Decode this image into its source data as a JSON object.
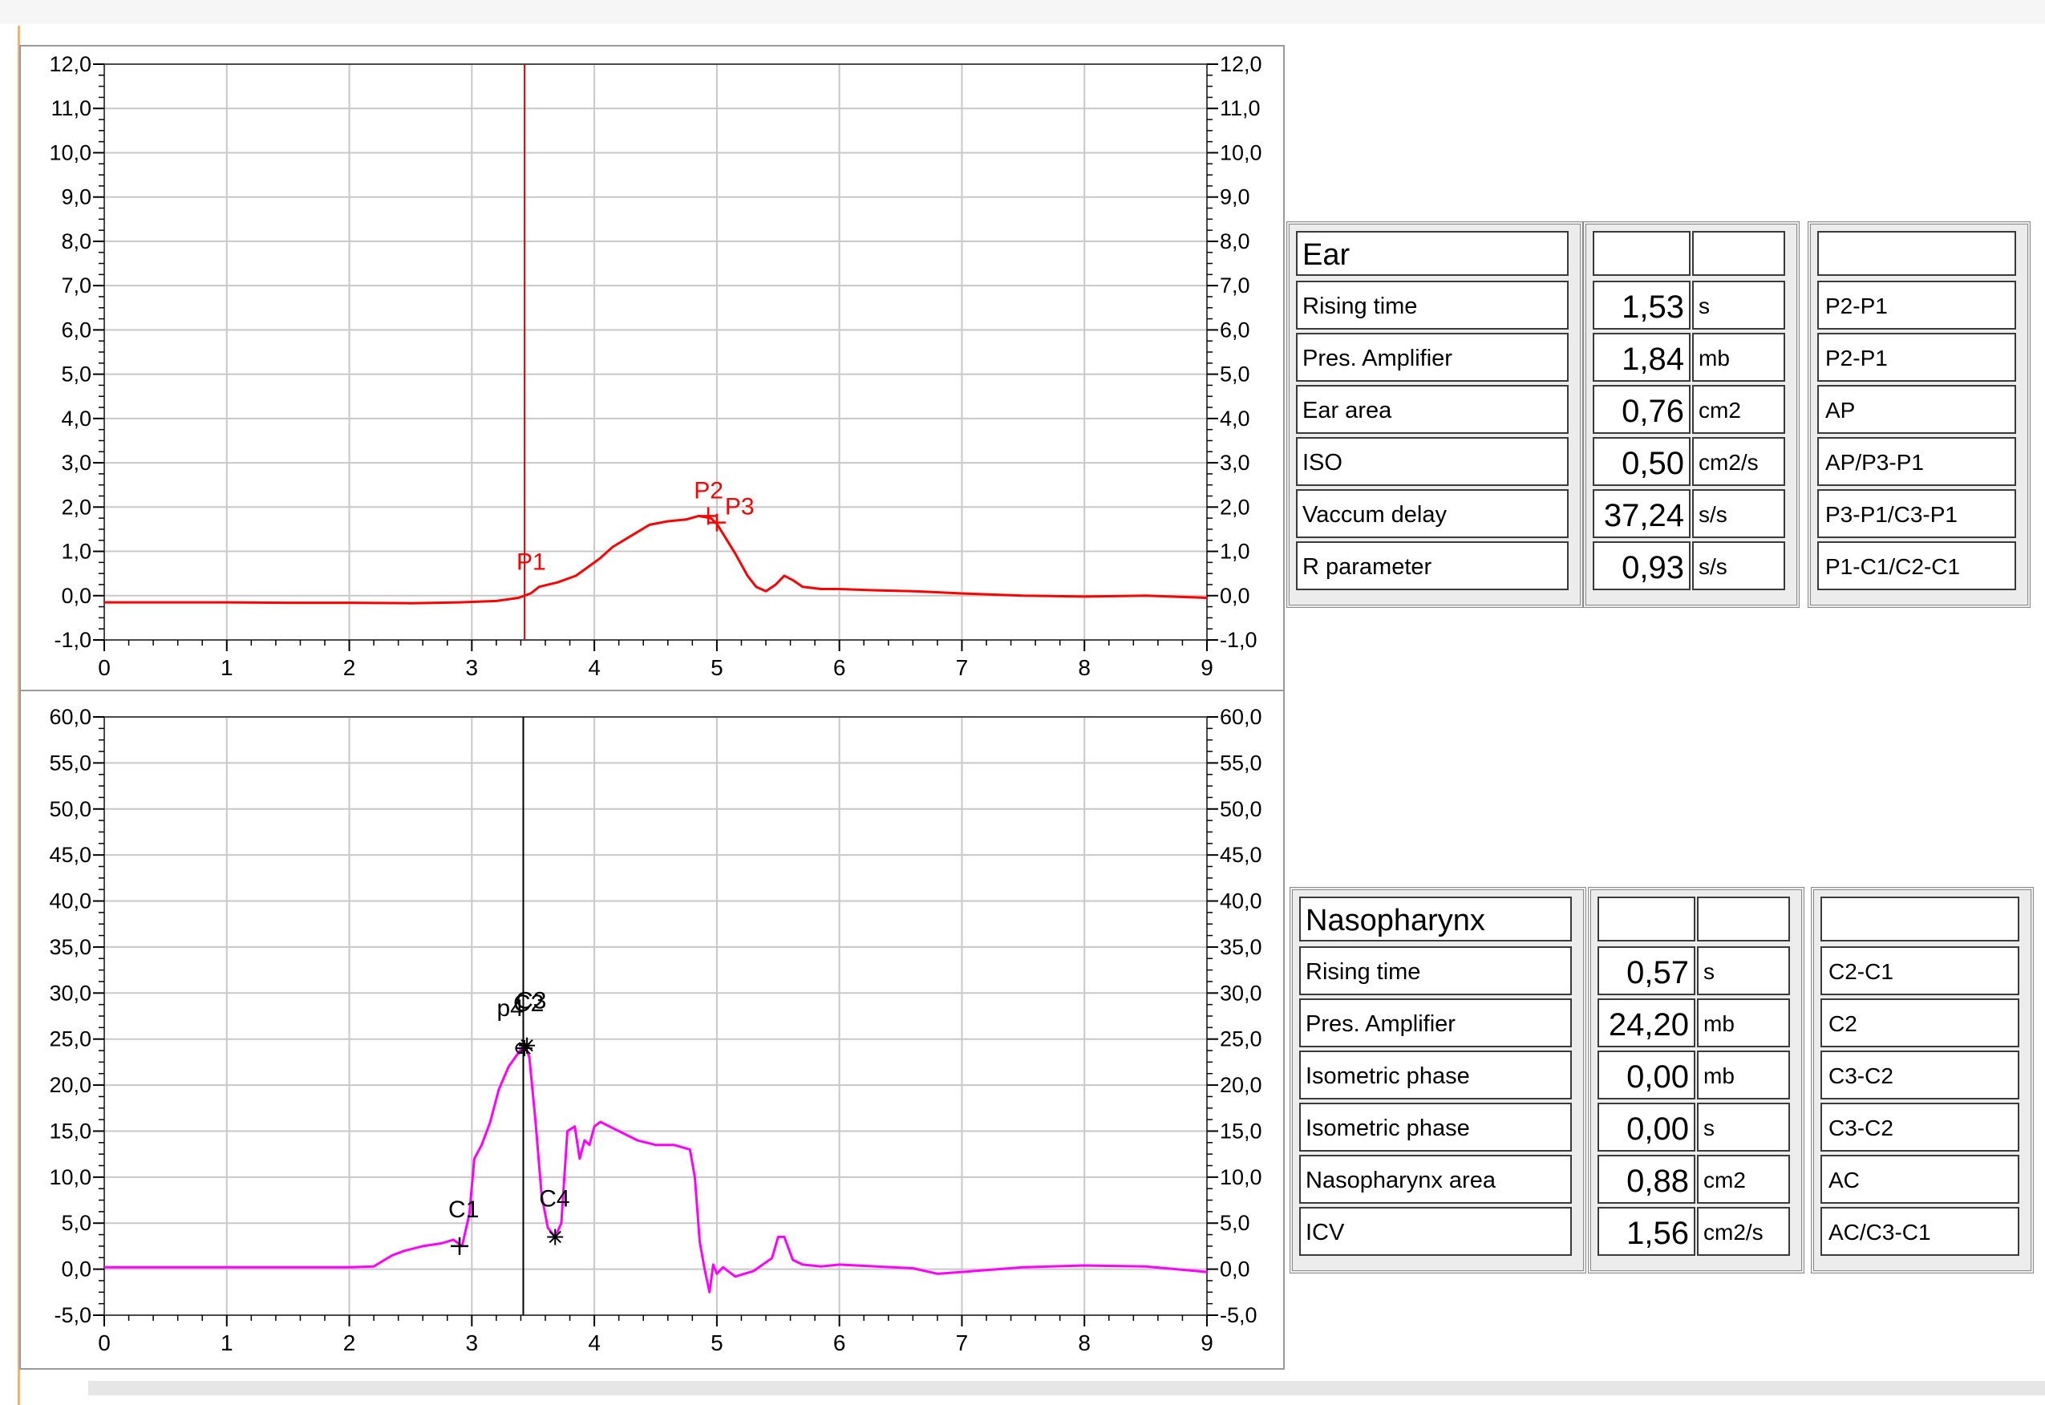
{
  "colors": {
    "ear_trace": "#ff0000",
    "ear_cursor": "#ff0000",
    "naso_trace": "#ff00ff",
    "naso_cursor": "#000000",
    "grid": "#c8c8c8",
    "axis": "#000000"
  },
  "icons": {
    "marker_cross": "plus-marker-icon",
    "marker_star": "asterisk-marker-icon"
  },
  "chart_data": [
    {
      "id": "ear",
      "type": "line",
      "xlim": [
        0,
        9
      ],
      "ylim": [
        -1,
        12
      ],
      "xticks": [
        0,
        1,
        2,
        3,
        4,
        5,
        6,
        7,
        8,
        9
      ],
      "xtick_labels": [
        "0",
        "1",
        "2",
        "3",
        "4",
        "5",
        "6",
        "7",
        "8",
        "9"
      ],
      "yticks": [
        -1,
        0,
        1,
        2,
        3,
        4,
        5,
        6,
        7,
        8,
        9,
        10,
        11,
        12
      ],
      "ytick_labels": [
        "-1,0",
        "0,0",
        "1,0",
        "2,0",
        "3,0",
        "4,0",
        "5,0",
        "6,0",
        "7,0",
        "8,0",
        "9,0",
        "10,0",
        "11,0",
        "12,0"
      ],
      "grid": true,
      "cursor_x": 3.43,
      "series": [
        {
          "x": [
            0,
            0.5,
            1,
            1.5,
            2,
            2.5,
            2.9,
            3.2,
            3.38,
            3.48,
            3.55,
            3.7,
            3.85,
            3.95,
            4.05,
            4.15,
            4.3,
            4.45,
            4.6,
            4.75,
            4.85,
            4.95,
            5.0,
            5.05,
            5.15,
            5.25,
            5.32,
            5.4,
            5.48,
            5.55,
            5.62,
            5.7,
            5.85,
            6.0,
            6.3,
            6.6,
            7.0,
            7.5,
            8.0,
            8.5,
            9.0
          ],
          "y": [
            -0.15,
            -0.15,
            -0.15,
            -0.16,
            -0.16,
            -0.17,
            -0.15,
            -0.12,
            -0.05,
            0.05,
            0.2,
            0.3,
            0.45,
            0.65,
            0.85,
            1.1,
            1.35,
            1.6,
            1.68,
            1.72,
            1.8,
            1.75,
            1.62,
            1.4,
            0.95,
            0.45,
            0.2,
            0.1,
            0.25,
            0.45,
            0.35,
            0.2,
            0.15,
            0.15,
            0.12,
            0.1,
            0.05,
            0.0,
            -0.02,
            0.0,
            -0.05
          ]
        }
      ],
      "markers": [
        {
          "label": "P1",
          "x": 3.43,
          "y": -0.1,
          "symbol": "none"
        },
        {
          "label": "P2",
          "x": 4.93,
          "y": 1.8,
          "symbol": "cross"
        },
        {
          "label": "P3",
          "x": 5.0,
          "y": 1.65,
          "symbol": "cross"
        }
      ]
    },
    {
      "id": "nasopharynx",
      "type": "line",
      "xlim": [
        0,
        9
      ],
      "ylim": [
        -5,
        60
      ],
      "xticks": [
        0,
        1,
        2,
        3,
        4,
        5,
        6,
        7,
        8,
        9
      ],
      "xtick_labels": [
        "0",
        "1",
        "2",
        "3",
        "4",
        "5",
        "6",
        "7",
        "8",
        "9"
      ],
      "yticks": [
        -5,
        0,
        5,
        10,
        15,
        20,
        25,
        30,
        35,
        40,
        45,
        50,
        55,
        60
      ],
      "ytick_labels": [
        "-5,0",
        "0,0",
        "5,0",
        "10,0",
        "15,0",
        "20,0",
        "25,0",
        "30,0",
        "35,0",
        "40,0",
        "45,0",
        "50,0",
        "55,0",
        "60,0"
      ],
      "grid": true,
      "cursor_x": 3.42,
      "series": [
        {
          "x": [
            0,
            0.5,
            1,
            1.5,
            2,
            2.2,
            2.35,
            2.45,
            2.6,
            2.75,
            2.85,
            2.92,
            2.98,
            3.02,
            3.08,
            3.15,
            3.22,
            3.3,
            3.38,
            3.43,
            3.47,
            3.52,
            3.57,
            3.62,
            3.68,
            3.73,
            3.78,
            3.84,
            3.88,
            3.92,
            3.96,
            4.0,
            4.05,
            4.2,
            4.35,
            4.5,
            4.65,
            4.78,
            4.82,
            4.86,
            4.9,
            4.94,
            4.97,
            5.0,
            5.05,
            5.15,
            5.3,
            5.45,
            5.5,
            5.55,
            5.62,
            5.7,
            5.85,
            6.0,
            6.3,
            6.6,
            6.8,
            7.0,
            7.5,
            8.0,
            8.5,
            9.0
          ],
          "y": [
            0.2,
            0.2,
            0.2,
            0.2,
            0.2,
            0.3,
            1.5,
            2.0,
            2.5,
            2.8,
            3.2,
            2.5,
            6.0,
            12.0,
            13.5,
            16.0,
            19.5,
            22.0,
            23.5,
            24.5,
            23.0,
            16.0,
            8.0,
            4.5,
            3.5,
            5.0,
            15.0,
            15.5,
            12.0,
            14.0,
            13.5,
            15.5,
            16.0,
            15.0,
            14.0,
            13.5,
            13.5,
            13.0,
            10.0,
            3.0,
            0.0,
            -2.5,
            0.5,
            -0.5,
            0.2,
            -0.8,
            -0.2,
            1.2,
            3.5,
            3.5,
            1.0,
            0.5,
            0.3,
            0.5,
            0.3,
            0.1,
            -0.5,
            -0.3,
            0.2,
            0.4,
            0.3,
            -0.3
          ]
        }
      ],
      "markers": [
        {
          "label": "C1",
          "x": 2.9,
          "y": 2.5,
          "symbol": "cross"
        },
        {
          "label": "p4",
          "x": 3.4,
          "y": 24.0,
          "symbol": "circle"
        },
        {
          "label": "C2",
          "x": 3.43,
          "y": 24.0,
          "symbol": "star"
        },
        {
          "label": "C3",
          "x": 3.45,
          "y": 24.3,
          "symbol": "star"
        },
        {
          "label": "C4",
          "x": 3.68,
          "y": 3.5,
          "symbol": "star"
        }
      ]
    }
  ],
  "ear_panel": {
    "title": "Ear",
    "rows": [
      {
        "label": "Rising time",
        "value": "1,53",
        "unit": "s",
        "ref": "P2-P1"
      },
      {
        "label": "Pres. Amplifier",
        "value": "1,84",
        "unit": "mb",
        "ref": "P2-P1"
      },
      {
        "label": "Ear area",
        "value": "0,76",
        "unit": "cm2",
        "ref": "AP"
      },
      {
        "label": "ISO",
        "value": "0,50",
        "unit": "cm2/s",
        "ref": "AP/P3-P1"
      },
      {
        "label": "Vaccum delay",
        "value": "37,24",
        "unit": "s/s",
        "ref": "P3-P1/C3-P1"
      },
      {
        "label": "R parameter",
        "value": "0,93",
        "unit": "s/s",
        "ref": "P1-C1/C2-C1"
      }
    ]
  },
  "naso_panel": {
    "title": "Nasopharynx",
    "rows": [
      {
        "label": "Rising time",
        "value": "0,57",
        "unit": "s",
        "ref": "C2-C1"
      },
      {
        "label": "Pres. Amplifier",
        "value": "24,20",
        "unit": "mb",
        "ref": "C2"
      },
      {
        "label": "Isometric phase",
        "value": "0,00",
        "unit": "mb",
        "ref": "C3-C2"
      },
      {
        "label": "Isometric phase",
        "value": "0,00",
        "unit": "s",
        "ref": "C3-C2"
      },
      {
        "label": "Nasopharynx area",
        "value": "0,88",
        "unit": "cm2",
        "ref": "AC"
      },
      {
        "label": "ICV",
        "value": "1,56",
        "unit": "cm2/s",
        "ref": "AC/C3-C1"
      }
    ]
  }
}
